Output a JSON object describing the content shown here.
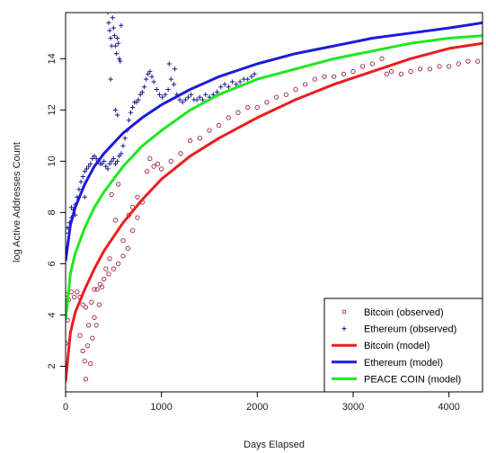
{
  "chart_data": {
    "type": "scatter",
    "title": "",
    "xlabel": "Days Elapsed",
    "ylabel": "log Active Addresses Count",
    "xlim": [
      0,
      4350
    ],
    "ylim": [
      1.0,
      15.8
    ],
    "xticks": [
      0,
      1000,
      2000,
      3000,
      4000
    ],
    "yticks": [
      2,
      4,
      6,
      8,
      10,
      12,
      14
    ],
    "grid": false,
    "legend_position": "bottom-right",
    "legend": [
      {
        "label": "Bitcoin (observed)",
        "marker": "circle",
        "color": "#a02050"
      },
      {
        "label": "Ethereum (observed)",
        "marker": "plus",
        "color": "#1a1a8c"
      },
      {
        "label": "Bitcoin (model)",
        "marker": "line",
        "color": "#ee1c1c"
      },
      {
        "label": "Ethereum (model)",
        "marker": "line",
        "color": "#1b1bdd"
      },
      {
        "label": "PEACE COIN (model)",
        "marker": "line",
        "color": "#1ee81e"
      }
    ],
    "series": [
      {
        "name": "Bitcoin (observed)",
        "kind": "scatter",
        "marker": "circle",
        "color": "#a02050",
        "points": [
          [
            0,
            4.8
          ],
          [
            30,
            4.6
          ],
          [
            60,
            4.9
          ],
          [
            90,
            4.7
          ],
          [
            120,
            4.9
          ],
          [
            150,
            4.7
          ],
          [
            180,
            4.4
          ],
          [
            210,
            4.3
          ],
          [
            240,
            3.6
          ],
          [
            270,
            4.5
          ],
          [
            300,
            5.0
          ],
          [
            330,
            5.0
          ],
          [
            360,
            5.2
          ],
          [
            400,
            5.4
          ],
          [
            450,
            5.6
          ],
          [
            500,
            5.8
          ],
          [
            550,
            6.0
          ],
          [
            600,
            6.3
          ],
          [
            650,
            6.6
          ],
          [
            700,
            7.3
          ],
          [
            750,
            7.8
          ],
          [
            800,
            8.4
          ],
          [
            850,
            9.6
          ],
          [
            880,
            10.1
          ],
          [
            920,
            9.8
          ],
          [
            960,
            9.9
          ],
          [
            1000,
            9.7
          ],
          [
            1100,
            10.0
          ],
          [
            1200,
            10.3
          ],
          [
            1300,
            10.8
          ],
          [
            1400,
            10.9
          ],
          [
            1500,
            11.2
          ],
          [
            1600,
            11.4
          ],
          [
            1700,
            11.7
          ],
          [
            1800,
            11.9
          ],
          [
            1900,
            12.1
          ],
          [
            2000,
            12.1
          ],
          [
            2100,
            12.3
          ],
          [
            2200,
            12.5
          ],
          [
            2300,
            12.6
          ],
          [
            2400,
            12.8
          ],
          [
            2500,
            13.0
          ],
          [
            2600,
            13.2
          ],
          [
            2700,
            13.3
          ],
          [
            2800,
            13.3
          ],
          [
            2900,
            13.4
          ],
          [
            3000,
            13.5
          ],
          [
            3100,
            13.7
          ],
          [
            3200,
            13.8
          ],
          [
            3300,
            14.0
          ],
          [
            3350,
            13.4
          ],
          [
            3400,
            13.5
          ],
          [
            3500,
            13.4
          ],
          [
            3600,
            13.5
          ],
          [
            3700,
            13.6
          ],
          [
            3800,
            13.6
          ],
          [
            3900,
            13.7
          ],
          [
            4000,
            13.7
          ],
          [
            4100,
            13.8
          ],
          [
            4200,
            13.9
          ],
          [
            4300,
            13.9
          ],
          [
            0,
            2.9
          ],
          [
            20,
            3.8
          ],
          [
            150,
            3.2
          ],
          [
            180,
            2.6
          ],
          [
            200,
            2.2
          ],
          [
            210,
            1.5
          ],
          [
            230,
            2.8
          ],
          [
            260,
            2.1
          ],
          [
            280,
            3.1
          ],
          [
            300,
            3.9
          ],
          [
            320,
            3.6
          ],
          [
            350,
            4.4
          ],
          [
            380,
            5.1
          ],
          [
            420,
            5.8
          ],
          [
            460,
            6.2
          ],
          [
            480,
            8.7
          ],
          [
            520,
            7.7
          ],
          [
            550,
            9.1
          ],
          [
            600,
            6.9
          ],
          [
            660,
            7.9
          ],
          [
            700,
            8.2
          ],
          [
            750,
            8.6
          ]
        ]
      },
      {
        "name": "Ethereum (observed)",
        "kind": "scatter",
        "marker": "plus",
        "color": "#1a1a8c",
        "points": [
          [
            0,
            7.2
          ],
          [
            20,
            7.4
          ],
          [
            40,
            7.6
          ],
          [
            60,
            7.8
          ],
          [
            80,
            8.1
          ],
          [
            100,
            8.3
          ],
          [
            120,
            8.6
          ],
          [
            140,
            8.9
          ],
          [
            160,
            9.2
          ],
          [
            180,
            9.4
          ],
          [
            200,
            9.6
          ],
          [
            220,
            9.7
          ],
          [
            240,
            9.8
          ],
          [
            260,
            9.9
          ],
          [
            280,
            10.1
          ],
          [
            300,
            10.2
          ],
          [
            320,
            10.1
          ],
          [
            340,
            10.0
          ],
          [
            360,
            9.9
          ],
          [
            380,
            9.9
          ],
          [
            400,
            10.0
          ],
          [
            420,
            9.8
          ],
          [
            440,
            9.7
          ],
          [
            460,
            9.9
          ],
          [
            480,
            10.0
          ],
          [
            500,
            10.1
          ],
          [
            520,
            9.9
          ],
          [
            540,
            10.0
          ],
          [
            560,
            10.2
          ],
          [
            580,
            10.3
          ],
          [
            600,
            10.6
          ],
          [
            620,
            10.9
          ],
          [
            640,
            11.2
          ],
          [
            660,
            11.6
          ],
          [
            680,
            11.9
          ],
          [
            700,
            12.1
          ],
          [
            720,
            12.3
          ],
          [
            740,
            12.3
          ],
          [
            760,
            12.4
          ],
          [
            780,
            12.6
          ],
          [
            800,
            12.7
          ],
          [
            820,
            12.9
          ],
          [
            840,
            13.2
          ],
          [
            860,
            13.4
          ],
          [
            880,
            13.5
          ],
          [
            900,
            13.3
          ],
          [
            920,
            13.1
          ],
          [
            950,
            12.8
          ],
          [
            980,
            12.6
          ],
          [
            1010,
            12.5
          ],
          [
            1040,
            12.6
          ],
          [
            1070,
            12.8
          ],
          [
            1100,
            13.2
          ],
          [
            1130,
            13.0
          ],
          [
            1160,
            12.6
          ],
          [
            1190,
            12.4
          ],
          [
            1220,
            12.3
          ],
          [
            1250,
            12.4
          ],
          [
            1280,
            12.5
          ],
          [
            1310,
            12.6
          ],
          [
            1340,
            12.4
          ],
          [
            1370,
            12.4
          ],
          [
            1400,
            12.5
          ],
          [
            1430,
            12.4
          ],
          [
            1460,
            12.6
          ],
          [
            1500,
            12.5
          ],
          [
            1540,
            12.6
          ],
          [
            1580,
            12.7
          ],
          [
            1620,
            12.9
          ],
          [
            1660,
            13.0
          ],
          [
            1700,
            12.9
          ],
          [
            1740,
            13.1
          ],
          [
            1780,
            13.0
          ],
          [
            1820,
            13.1
          ],
          [
            1860,
            13.2
          ],
          [
            1900,
            13.2
          ],
          [
            1940,
            13.3
          ],
          [
            1970,
            13.4
          ],
          [
            1080,
            13.8
          ],
          [
            1140,
            13.6
          ],
          [
            440,
            15.8
          ],
          [
            450,
            15.4
          ],
          [
            460,
            15.1
          ],
          [
            470,
            14.8
          ],
          [
            480,
            14.5
          ],
          [
            490,
            15.6
          ],
          [
            500,
            15.2
          ],
          [
            510,
            14.9
          ],
          [
            520,
            14.5
          ],
          [
            530,
            14.2
          ],
          [
            540,
            14.8
          ],
          [
            550,
            14.6
          ],
          [
            560,
            14.0
          ],
          [
            570,
            13.9
          ],
          [
            580,
            15.3
          ],
          [
            520,
            12.0
          ],
          [
            540,
            11.8
          ],
          [
            470,
            13.2
          ],
          [
            100,
            7.9
          ],
          [
            60,
            8.2
          ],
          [
            200,
            8.6
          ]
        ]
      },
      {
        "name": "Bitcoin (model)",
        "kind": "line",
        "color": "#ee1c1c",
        "x": [
          0,
          50,
          100,
          200,
          300,
          400,
          600,
          800,
          1000,
          1300,
          1600,
          2000,
          2400,
          2800,
          3200,
          3600,
          4000,
          4350
        ],
        "y": [
          1.4,
          3.3,
          4.1,
          5.0,
          5.8,
          6.5,
          7.6,
          8.5,
          9.3,
          10.2,
          10.9,
          11.7,
          12.4,
          13.0,
          13.5,
          14.0,
          14.4,
          14.6
        ]
      },
      {
        "name": "Ethereum (model)",
        "kind": "line",
        "color": "#1b1bdd",
        "x": [
          0,
          50,
          100,
          200,
          300,
          400,
          600,
          800,
          1000,
          1300,
          1600,
          2000,
          2400,
          2800,
          3200,
          3600,
          4000,
          4350
        ],
        "y": [
          6.1,
          7.5,
          8.2,
          9.1,
          9.8,
          10.3,
          11.1,
          11.7,
          12.2,
          12.8,
          13.3,
          13.8,
          14.2,
          14.5,
          14.8,
          15.0,
          15.2,
          15.4
        ]
      },
      {
        "name": "PEACE COIN (model)",
        "kind": "line",
        "color": "#1ee81e",
        "x": [
          0,
          50,
          100,
          200,
          300,
          400,
          600,
          800,
          1000,
          1300,
          1600,
          2000,
          2400,
          2800,
          3200,
          3600,
          4000,
          4350
        ],
        "y": [
          3.8,
          5.6,
          6.4,
          7.4,
          8.2,
          8.8,
          9.8,
          10.6,
          11.2,
          12.0,
          12.6,
          13.2,
          13.6,
          14.0,
          14.3,
          14.6,
          14.8,
          14.9
        ]
      }
    ]
  }
}
